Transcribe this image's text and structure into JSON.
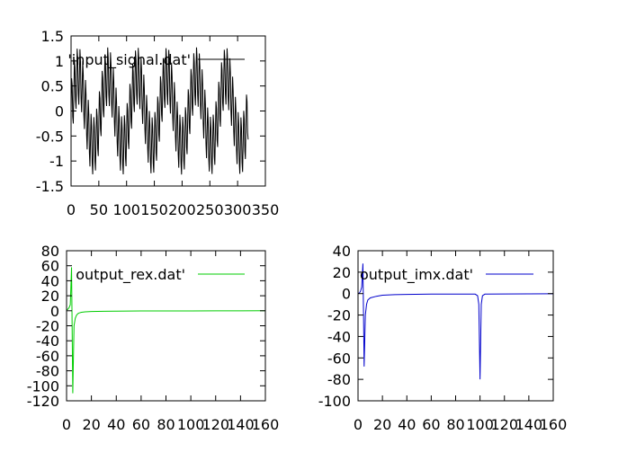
{
  "chart_data": [
    {
      "type": "line",
      "id": "input",
      "title": "",
      "xlabel": "",
      "ylabel": "",
      "xlim": [
        0,
        350
      ],
      "ylim": [
        -1.5,
        1.5
      ],
      "x_ticks": [
        0,
        50,
        100,
        150,
        200,
        250,
        300,
        350
      ],
      "x_tick_labels": [
        "0",
        "50",
        "100",
        "150",
        "200",
        "250",
        "300",
        "350"
      ],
      "y_ticks": [
        -1.5,
        -1,
        -0.5,
        0,
        0.5,
        1,
        1.5
      ],
      "y_tick_labels": [
        "-1.5",
        "-1",
        "-0.5",
        "0",
        "0.5",
        "1",
        "1.5"
      ],
      "grid": false,
      "legend_position": "top-right",
      "series": [
        {
          "name": "'input_signal.dat'",
          "color": "#000000",
          "x_range": [
            0,
            319
          ],
          "samples": 320,
          "low_frequency_cycles_over_range": 6,
          "low_amplitude": 0.7,
          "high_frequency_period": 5,
          "high_amplitude": 0.6
        }
      ]
    },
    {
      "type": "line",
      "id": "rex",
      "title": "",
      "xlabel": "",
      "ylabel": "",
      "xlim": [
        0,
        160
      ],
      "ylim": [
        -120,
        80
      ],
      "x_ticks": [
        0,
        20,
        40,
        60,
        80,
        100,
        120,
        140,
        160
      ],
      "x_tick_labels": [
        "0",
        "20",
        "40",
        "60",
        "80",
        "100",
        "120",
        "140",
        "160"
      ],
      "y_ticks": [
        -120,
        -100,
        -80,
        -60,
        -40,
        -20,
        0,
        20,
        40,
        60,
        80
      ],
      "y_tick_labels": [
        "-120",
        "-100",
        "-80",
        "-60",
        "-40",
        "-20",
        "0",
        "20",
        "40",
        "60",
        "80"
      ],
      "grid": false,
      "legend_position": "top-right",
      "series": [
        {
          "name": "output_rex.dat'",
          "color": "#00cc00",
          "x": [
            0,
            1,
            2,
            3,
            4,
            5,
            6,
            7,
            8,
            9,
            10,
            12,
            15,
            20,
            30,
            40,
            60,
            80,
            100,
            120,
            140,
            160
          ],
          "y": [
            1,
            2,
            4,
            8,
            58,
            -110,
            -20,
            -10,
            -6,
            -4,
            -3,
            -2,
            -1.5,
            -1,
            -0.7,
            -0.5,
            -0.3,
            -0.2,
            -0.2,
            -0.1,
            -0.1,
            0
          ]
        }
      ]
    },
    {
      "type": "line",
      "id": "imx",
      "title": "",
      "xlabel": "",
      "ylabel": "",
      "xlim": [
        0,
        160
      ],
      "ylim": [
        -100,
        40
      ],
      "x_ticks": [
        0,
        20,
        40,
        60,
        80,
        100,
        120,
        140,
        160
      ],
      "x_tick_labels": [
        "0",
        "20",
        "40",
        "60",
        "80",
        "100",
        "120",
        "140",
        "160"
      ],
      "y_ticks": [
        -100,
        -80,
        -60,
        -40,
        -20,
        0,
        20,
        40
      ],
      "y_tick_labels": [
        "-100",
        "-80",
        "-60",
        "-40",
        "-20",
        "0",
        "20",
        "40"
      ],
      "grid": false,
      "legend_position": "top-right",
      "series": [
        {
          "name": "output_imx.dat'",
          "color": "#0000cc",
          "x": [
            0,
            1,
            2,
            3,
            4,
            5,
            6,
            7,
            8,
            10,
            15,
            20,
            30,
            40,
            60,
            80,
            96,
            98,
            99,
            100,
            101,
            102,
            104,
            120,
            140,
            160
          ],
          "y": [
            0,
            0.5,
            2,
            6,
            28,
            -68,
            -20,
            -10,
            -6,
            -4,
            -2.5,
            -1.5,
            -1,
            -0.8,
            -0.5,
            -0.4,
            -0.5,
            -2,
            -10,
            -80,
            -10,
            -2,
            -0.5,
            -0.3,
            -0.2,
            -0.1
          ]
        }
      ]
    }
  ]
}
